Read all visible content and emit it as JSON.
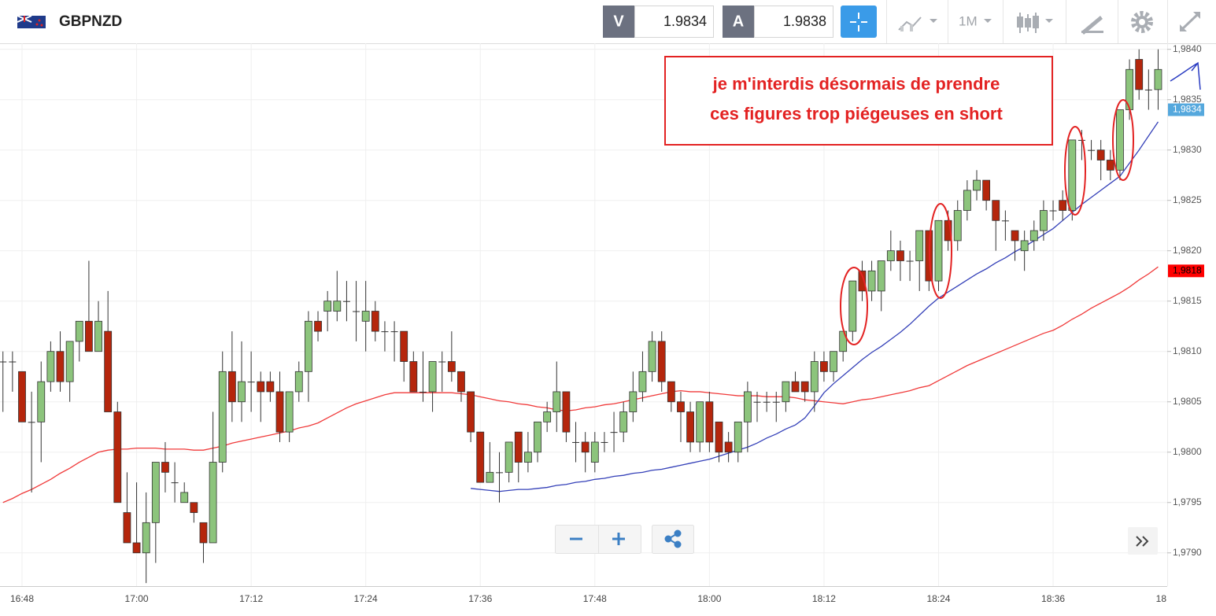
{
  "toolbar": {
    "symbol": "GBPNZD",
    "sell": {
      "label": "V",
      "price": 1.9834
    },
    "buy": {
      "label": "A",
      "price": 1.9838
    },
    "timeframe": "1M"
  },
  "annotation": {
    "lines": [
      "je m'interdis désormais de prendre",
      "ces figures trop piégeuses en short"
    ]
  },
  "chart_data": {
    "type": "candlestick",
    "categories": [
      null,
      null,
      "16:48",
      null,
      null,
      null,
      null,
      null,
      null,
      null,
      null,
      null,
      null,
      null,
      "17:00",
      null,
      null,
      null,
      null,
      null,
      null,
      null,
      null,
      null,
      null,
      null,
      "17:12",
      null,
      null,
      null,
      null,
      null,
      null,
      null,
      null,
      null,
      null,
      null,
      "17:24",
      null,
      null,
      null,
      null,
      null,
      null,
      null,
      null,
      null,
      null,
      null,
      "17:36",
      null,
      null,
      null,
      null,
      null,
      null,
      null,
      null,
      null,
      null,
      null,
      "17:48",
      null,
      null,
      null,
      null,
      null,
      null,
      null,
      null,
      null,
      null,
      null,
      "18:00",
      null,
      null,
      null,
      null,
      null,
      null,
      null,
      null,
      null,
      null,
      null,
      "18:12",
      null,
      null,
      null,
      null,
      null,
      null,
      null,
      null,
      null,
      null,
      null,
      "18:24",
      null,
      null,
      null,
      null,
      null,
      null,
      null,
      null,
      null,
      null,
      null,
      "18:36",
      null,
      null,
      null,
      null,
      null,
      null,
      null,
      null,
      null,
      null,
      null,
      "18"
    ],
    "open": [
      1.9809,
      1.9809,
      1.9808,
      1.9803,
      1.9803,
      1.9807,
      1.981,
      1.9807,
      1.9811,
      1.9813,
      1.981,
      1.9812,
      1.9804,
      1.9794,
      1.9791,
      1.979,
      1.9793,
      1.9799,
      1.9797,
      1.9795,
      1.9795,
      1.9793,
      1.9791,
      1.9799,
      1.9808,
      1.9805,
      1.9807,
      1.9807,
      1.9807,
      1.9806,
      1.9802,
      1.9806,
      1.9808,
      1.9813,
      1.9814,
      1.9814,
      1.9815,
      1.9814,
      1.9813,
      1.9814,
      1.9812,
      1.9812,
      1.9812,
      1.9809,
      1.9806,
      1.9806,
      1.9809,
      1.9809,
      1.9808,
      1.9806,
      1.9802,
      1.9797,
      1.9798,
      1.9798,
      1.9802,
      1.9799,
      1.98,
      1.9803,
      1.9804,
      1.9806,
      1.9801,
      1.9801,
      1.9799,
      1.9801,
      1.9802,
      1.9802,
      1.9804,
      1.9806,
      1.9808,
      1.9811,
      1.9807,
      1.9805,
      1.9804,
      1.9801,
      1.9805,
      1.9803,
      1.9801,
      1.98,
      1.9803,
      1.9805,
      1.9805,
      1.9805,
      1.9805,
      1.9807,
      1.9807,
      1.9806,
      1.9809,
      1.9808,
      1.981,
      1.9812,
      1.9818,
      1.9816,
      1.9816,
      1.9819,
      1.982,
      1.9819,
      1.9819,
      1.9822,
      1.9817,
      1.9823,
      1.9821,
      1.9824,
      1.9826,
      1.9827,
      1.9825,
      1.9823,
      1.9822,
      1.982,
      1.9821,
      1.9822,
      1.9824,
      1.9825,
      1.9824,
      1.9831,
      1.983,
      1.983,
      1.9829,
      1.9828,
      1.9834,
      1.9839,
      1.9836,
      1.9836,
      null
    ],
    "high": [
      1.981,
      1.981,
      1.9808,
      1.9806,
      1.9809,
      1.9811,
      1.9812,
      1.9811,
      1.9813,
      1.9819,
      1.9815,
      1.9816,
      1.9805,
      1.9798,
      1.9797,
      1.9796,
      1.9799,
      1.9801,
      1.9799,
      1.9797,
      1.9795,
      1.9793,
      1.9804,
      1.981,
      1.9812,
      1.9811,
      1.981,
      1.9808,
      1.9808,
      1.9808,
      1.9806,
      1.9809,
      1.9814,
      1.9814,
      1.9816,
      1.9818,
      1.9817,
      1.9817,
      1.9817,
      1.9815,
      1.9813,
      1.9813,
      1.9812,
      1.981,
      1.981,
      1.9809,
      1.981,
      1.9812,
      1.9808,
      1.9806,
      1.9802,
      1.9801,
      1.98,
      1.9801,
      1.9802,
      1.9802,
      1.9803,
      1.9805,
      1.9809,
      1.9806,
      1.9803,
      1.9802,
      1.9802,
      1.9802,
      1.9804,
      1.9805,
      1.9808,
      1.981,
      1.9812,
      1.9812,
      1.9807,
      1.9806,
      1.9805,
      1.9805,
      1.9806,
      1.9803,
      1.9802,
      1.9803,
      1.9807,
      1.9806,
      1.9806,
      1.9806,
      1.9807,
      1.9808,
      1.9807,
      1.981,
      1.981,
      1.981,
      1.9812,
      1.9817,
      1.9819,
      1.9819,
      1.9819,
      1.9822,
      1.9821,
      1.982,
      1.9822,
      1.9822,
      1.9823,
      1.9824,
      1.9825,
      1.9827,
      1.9828,
      1.9827,
      1.9825,
      1.9824,
      1.9822,
      1.9822,
      1.9823,
      1.9825,
      1.9825,
      1.9826,
      1.9831,
      1.9832,
      1.9831,
      1.9831,
      1.983,
      1.9834,
      1.9839,
      1.984,
      1.9838,
      1.984,
      null
    ],
    "low": [
      1.9804,
      1.9806,
      1.9803,
      1.9796,
      1.9799,
      1.9806,
      1.9806,
      1.9805,
      1.9809,
      1.981,
      1.981,
      1.9804,
      1.9795,
      1.9791,
      1.979,
      1.9787,
      1.9789,
      1.9796,
      1.9795,
      1.9795,
      1.9793,
      1.9789,
      1.9791,
      1.9798,
      1.9803,
      1.9803,
      1.9804,
      1.9803,
      1.9805,
      1.9801,
      1.9801,
      1.9805,
      1.9805,
      1.9811,
      1.9812,
      1.9813,
      1.9813,
      1.9811,
      1.981,
      1.9811,
      1.981,
      1.9809,
      1.9807,
      1.9806,
      1.9805,
      1.9804,
      1.9806,
      1.9807,
      1.9805,
      1.9801,
      1.9797,
      1.9797,
      1.9795,
      1.9797,
      1.9797,
      1.9798,
      1.9799,
      1.9802,
      1.9802,
      1.9801,
      1.9799,
      1.9798,
      1.9798,
      1.98,
      1.98,
      1.9801,
      1.9803,
      1.9805,
      1.9807,
      1.9806,
      1.9804,
      1.9801,
      1.98,
      1.98,
      1.98,
      1.9799,
      1.9799,
      1.9799,
      1.98,
      1.9803,
      1.9804,
      1.9803,
      1.9804,
      1.9806,
      1.9805,
      1.9804,
      1.9807,
      1.9807,
      1.9809,
      1.9811,
      1.9815,
      1.9815,
      1.9814,
      1.9818,
      1.9817,
      1.9817,
      1.9816,
      1.9816,
      1.9816,
      1.982,
      1.982,
      1.9823,
      1.9825,
      1.9824,
      1.982,
      1.9821,
      1.9819,
      1.9818,
      1.982,
      1.9821,
      1.9823,
      1.9823,
      1.9823,
      1.9829,
      1.9829,
      1.9827,
      1.9827,
      1.9827,
      1.9833,
      1.9835,
      1.9834,
      1.9834,
      null
    ],
    "close": [
      1.9809,
      1.9809,
      1.9803,
      1.9803,
      1.9807,
      1.981,
      1.9807,
      1.9811,
      1.9813,
      1.981,
      1.9813,
      1.9804,
      1.9795,
      1.9791,
      1.979,
      1.9793,
      1.9799,
      1.9798,
      1.9797,
      1.9796,
      1.9794,
      1.9791,
      1.9799,
      1.9808,
      1.9805,
      1.9807,
      1.9807,
      1.9806,
      1.9806,
      1.9802,
      1.9806,
      1.9808,
      1.9813,
      1.9812,
      1.9815,
      1.9815,
      1.9815,
      1.9814,
      1.9814,
      1.9812,
      1.9812,
      1.9812,
      1.9809,
      1.9806,
      1.9806,
      1.9809,
      1.9809,
      1.9808,
      1.9806,
      1.9802,
      1.9797,
      1.9798,
      1.9798,
      1.9801,
      1.9799,
      1.98,
      1.9803,
      1.9804,
      1.9806,
      1.9802,
      1.9801,
      1.98,
      1.9801,
      1.9801,
      1.9802,
      1.9804,
      1.9806,
      1.9808,
      1.9811,
      1.9807,
      1.9805,
      1.9804,
      1.9801,
      1.9805,
      1.9801,
      1.98,
      1.98,
      1.9803,
      1.9806,
      1.9805,
      1.9805,
      1.9805,
      1.9807,
      1.9806,
      1.9806,
      1.9809,
      1.9808,
      1.981,
      1.9812,
      1.9817,
      1.9816,
      1.9818,
      1.9819,
      1.982,
      1.9819,
      1.9819,
      1.9822,
      1.9817,
      1.9823,
      1.9821,
      1.9824,
      1.9826,
      1.9827,
      1.9825,
      1.9823,
      1.9823,
      1.9821,
      1.9821,
      1.9822,
      1.9824,
      1.9824,
      1.9824,
      1.9831,
      1.9831,
      1.983,
      1.9829,
      1.9828,
      1.9834,
      1.9838,
      1.9836,
      1.9836,
      1.9838,
      null
    ],
    "up_color": "#8cc47c",
    "down_color": "#b5260c",
    "overlays": [
      {
        "color": "#f03a3a",
        "values": [
          1.9795,
          1.97954,
          1.97959,
          1.97963,
          1.97968,
          1.97973,
          1.97979,
          1.97984,
          1.9799,
          1.97995,
          1.98,
          1.98002,
          1.98003,
          1.98003,
          1.98004,
          1.98004,
          1.98004,
          1.98003,
          1.98003,
          1.98003,
          1.98002,
          1.98002,
          1.98004,
          1.98006,
          1.98009,
          1.98011,
          1.98013,
          1.98015,
          1.98017,
          1.98019,
          1.98021,
          1.98024,
          1.98026,
          1.98029,
          1.98034,
          1.98039,
          1.98044,
          1.98048,
          1.98051,
          1.98054,
          1.98057,
          1.98059,
          1.98059,
          1.98059,
          1.98059,
          1.98059,
          1.98059,
          1.98059,
          1.98058,
          1.98057,
          1.98055,
          1.98053,
          1.98051,
          1.9805,
          1.98048,
          1.98047,
          1.98045,
          1.98044,
          1.98042,
          1.98041,
          1.98042,
          1.98044,
          1.98045,
          1.98047,
          1.98048,
          1.9805,
          1.98052,
          1.98054,
          1.98056,
          1.98058,
          1.9806,
          1.98061,
          1.9806,
          1.9806,
          1.98059,
          1.98058,
          1.98057,
          1.98056,
          1.98056,
          1.98056,
          1.98055,
          1.98055,
          1.98055,
          1.98054,
          1.98052,
          1.98051,
          1.9805,
          1.98049,
          1.98048,
          1.9805,
          1.98052,
          1.98053,
          1.98055,
          1.98057,
          1.98059,
          1.98061,
          1.98064,
          1.98066,
          1.98071,
          1.98076,
          1.98081,
          1.98086,
          1.9809,
          1.98094,
          1.98098,
          1.98102,
          1.98106,
          1.9811,
          1.98114,
          1.98118,
          1.98121,
          1.98126,
          1.98132,
          1.98137,
          1.98143,
          1.98148,
          1.98153,
          1.98158,
          1.98164,
          1.98171,
          1.98177,
          1.98184,
          null
        ]
      },
      {
        "color": "#3440b8",
        "values": [
          null,
          null,
          null,
          null,
          null,
          null,
          null,
          null,
          null,
          null,
          null,
          null,
          null,
          null,
          null,
          null,
          null,
          null,
          null,
          null,
          null,
          null,
          null,
          null,
          null,
          null,
          null,
          null,
          null,
          null,
          null,
          null,
          null,
          null,
          null,
          null,
          null,
          null,
          null,
          null,
          null,
          null,
          null,
          null,
          null,
          null,
          null,
          null,
          null,
          1.97964,
          1.97963,
          1.97962,
          1.97961,
          1.97962,
          1.97963,
          1.97963,
          1.97964,
          1.97965,
          1.97967,
          1.97968,
          1.9797,
          1.97971,
          1.97973,
          1.97974,
          1.97976,
          1.97977,
          1.97979,
          1.9798,
          1.97982,
          1.97983,
          1.97985,
          1.97987,
          1.97989,
          1.97991,
          1.97993,
          1.97996,
          1.97999,
          1.98002,
          1.98005,
          1.98009,
          1.98014,
          1.98018,
          1.98023,
          1.98027,
          1.98034,
          1.98046,
          1.98059,
          1.98068,
          1.98076,
          1.98084,
          1.98092,
          1.98099,
          1.98105,
          1.98112,
          1.98119,
          1.98127,
          1.98136,
          1.98145,
          1.98153,
          1.98159,
          1.98165,
          1.98171,
          1.98177,
          1.98182,
          1.98188,
          1.98193,
          1.98199,
          1.98204,
          1.9821,
          1.98216,
          1.98222,
          1.9823,
          1.98238,
          1.98246,
          1.98253,
          1.9826,
          1.98267,
          1.98274,
          1.98287,
          1.983,
          1.98314,
          1.98328,
          null
        ]
      }
    ],
    "ylim": [
      1.97867,
      1.98406
    ],
    "yticks": [
      {
        "value": 1.979,
        "label": "1,9790"
      },
      {
        "value": 1.9795,
        "label": "1,9795"
      },
      {
        "value": 1.98,
        "label": "1,9800"
      },
      {
        "value": 1.9805,
        "label": "1,9805"
      },
      {
        "value": 1.981,
        "label": "1,9810"
      },
      {
        "value": 1.9815,
        "label": "1,9815"
      },
      {
        "value": 1.982,
        "label": "1,9820"
      },
      {
        "value": 1.9825,
        "label": "1,9825"
      },
      {
        "value": 1.983,
        "label": "1,9830"
      },
      {
        "value": 1.9835,
        "label": "1,9835"
      },
      {
        "value": 1.984,
        "label": "1,9840"
      }
    ],
    "price_labels": [
      {
        "value": 1.9834,
        "label": "1,9834",
        "color": "#55a8dd",
        "text_color": "#ffffff"
      },
      {
        "value": 1.9818,
        "label": "1,9818",
        "color": "#ff0000",
        "text_color": "#000000"
      }
    ],
    "grid": true
  }
}
